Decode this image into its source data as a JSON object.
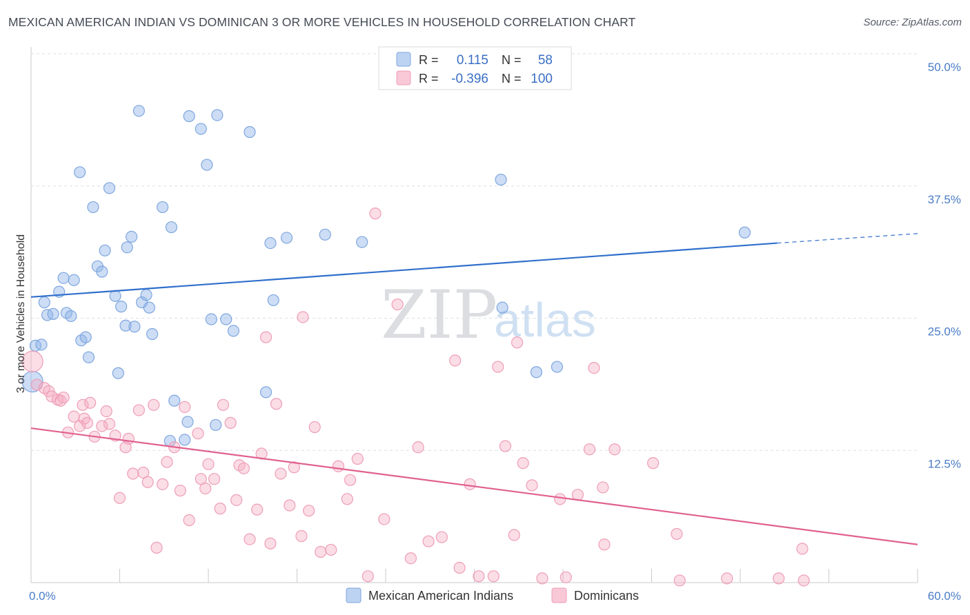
{
  "header": {
    "title": "MEXICAN AMERICAN INDIAN VS DOMINICAN 3 OR MORE VEHICLES IN HOUSEHOLD CORRELATION CHART",
    "source": "Source: ZipAtlas.com"
  },
  "watermark": {
    "zip": "ZIP",
    "atlas": "atlas"
  },
  "legend_top": {
    "rows": [
      {
        "r_label": "R =",
        "r_value": "0.115",
        "n_label": "N =",
        "n_value": "58",
        "color": "#8fb4e8"
      },
      {
        "r_label": "R =",
        "r_value": "-0.396",
        "n_label": "N =",
        "n_value": "100",
        "color": "#f4a9c0"
      }
    ]
  },
  "legend_bottom": {
    "items": [
      {
        "label": "Mexican American Indians",
        "color": "#8fb4e8"
      },
      {
        "label": "Dominicans",
        "color": "#f4a9c0"
      }
    ]
  },
  "chart_data": {
    "type": "scatter",
    "title": "MEXICAN AMERICAN INDIAN VS DOMINICAN 3 OR MORE VEHICLES IN HOUSEHOLD CORRELATION CHART",
    "xlabel": "",
    "ylabel": "3 or more Vehicles in Household",
    "xlim": [
      0,
      60
    ],
    "ylim": [
      0,
      50
    ],
    "x_tick_labels": [
      "0.0%",
      "60.0%"
    ],
    "y_ticks": [
      12.5,
      25.0,
      37.5,
      50.0
    ],
    "y_tick_labels": [
      "12.5%",
      "25.0%",
      "37.5%",
      "50.0%"
    ],
    "grid": "horizontal dashed",
    "legend_position": "top-center",
    "series": [
      {
        "name": "Mexican American Indians",
        "color": "#8fb4e8",
        "line_color": "#2f6fcc",
        "trend": {
          "x": [
            0,
            50.5
          ],
          "y": [
            27.0,
            32.1
          ],
          "dashed_extension_to": [
            60,
            33.0
          ]
        },
        "points": [
          [
            0.1,
            19.0
          ],
          [
            0.3,
            22.4
          ],
          [
            0.7,
            22.5
          ],
          [
            0.9,
            26.5
          ],
          [
            1.1,
            25.3
          ],
          [
            1.5,
            25.4
          ],
          [
            1.9,
            27.5
          ],
          [
            2.2,
            28.8
          ],
          [
            2.4,
            25.5
          ],
          [
            2.7,
            25.2
          ],
          [
            2.9,
            28.6
          ],
          [
            3.3,
            38.8
          ],
          [
            3.4,
            22.9
          ],
          [
            3.7,
            23.2
          ],
          [
            3.9,
            21.3
          ],
          [
            4.2,
            35.5
          ],
          [
            4.5,
            29.9
          ],
          [
            4.8,
            29.4
          ],
          [
            5.0,
            31.4
          ],
          [
            5.3,
            37.3
          ],
          [
            5.7,
            27.1
          ],
          [
            5.9,
            19.8
          ],
          [
            6.1,
            26.1
          ],
          [
            6.4,
            24.3
          ],
          [
            6.5,
            31.7
          ],
          [
            6.8,
            32.7
          ],
          [
            7.0,
            24.2
          ],
          [
            7.3,
            44.6
          ],
          [
            7.5,
            26.5
          ],
          [
            7.8,
            27.2
          ],
          [
            8.0,
            26.0
          ],
          [
            8.2,
            23.5
          ],
          [
            8.9,
            35.5
          ],
          [
            9.4,
            13.4
          ],
          [
            9.5,
            33.6
          ],
          [
            9.7,
            17.2
          ],
          [
            10.4,
            13.5
          ],
          [
            10.6,
            15.2
          ],
          [
            10.7,
            44.1
          ],
          [
            11.5,
            42.9
          ],
          [
            11.9,
            39.5
          ],
          [
            12.2,
            24.9
          ],
          [
            12.5,
            14.9
          ],
          [
            12.6,
            44.2
          ],
          [
            13.2,
            24.9
          ],
          [
            13.7,
            23.8
          ],
          [
            14.8,
            42.6
          ],
          [
            15.9,
            18.0
          ],
          [
            16.2,
            32.1
          ],
          [
            16.4,
            26.7
          ],
          [
            17.3,
            32.6
          ],
          [
            19.9,
            32.9
          ],
          [
            22.4,
            32.2
          ],
          [
            31.8,
            38.1
          ],
          [
            31.9,
            26.0
          ],
          [
            34.2,
            19.9
          ],
          [
            35.6,
            20.4
          ],
          [
            48.3,
            33.1
          ]
        ]
      },
      {
        "name": "Dominicans",
        "color": "#f4a9c0",
        "line_color": "#e0608f",
        "trend": {
          "x": [
            0,
            60
          ],
          "y": [
            14.6,
            3.6
          ]
        },
        "points": [
          [
            0.1,
            20.9
          ],
          [
            0.4,
            18.7
          ],
          [
            0.9,
            18.4
          ],
          [
            1.2,
            18.1
          ],
          [
            1.4,
            17.6
          ],
          [
            1.8,
            17.3
          ],
          [
            2.0,
            17.2
          ],
          [
            2.2,
            17.5
          ],
          [
            2.5,
            14.2
          ],
          [
            2.9,
            15.7
          ],
          [
            3.3,
            14.8
          ],
          [
            3.5,
            16.8
          ],
          [
            3.6,
            15.5
          ],
          [
            3.8,
            15.1
          ],
          [
            4.0,
            17.0
          ],
          [
            4.3,
            13.8
          ],
          [
            4.8,
            14.8
          ],
          [
            5.1,
            16.2
          ],
          [
            5.3,
            15.0
          ],
          [
            5.7,
            13.9
          ],
          [
            6.0,
            8.0
          ],
          [
            6.4,
            12.8
          ],
          [
            6.6,
            13.6
          ],
          [
            6.9,
            10.3
          ],
          [
            7.3,
            16.3
          ],
          [
            7.6,
            10.4
          ],
          [
            7.9,
            9.5
          ],
          [
            8.3,
            16.8
          ],
          [
            8.5,
            3.3
          ],
          [
            8.9,
            9.3
          ],
          [
            9.2,
            11.4
          ],
          [
            9.7,
            12.8
          ],
          [
            10.1,
            8.7
          ],
          [
            10.4,
            16.6
          ],
          [
            10.7,
            5.9
          ],
          [
            11.3,
            14.1
          ],
          [
            11.5,
            9.8
          ],
          [
            11.8,
            8.9
          ],
          [
            12.0,
            11.2
          ],
          [
            12.4,
            9.8
          ],
          [
            12.8,
            7.0
          ],
          [
            13.0,
            16.8
          ],
          [
            13.5,
            15.1
          ],
          [
            13.9,
            7.8
          ],
          [
            14.1,
            11.1
          ],
          [
            14.4,
            10.8
          ],
          [
            14.8,
            4.1
          ],
          [
            15.3,
            6.9
          ],
          [
            15.6,
            12.2
          ],
          [
            15.9,
            23.2
          ],
          [
            16.2,
            3.7
          ],
          [
            16.6,
            16.9
          ],
          [
            16.9,
            10.3
          ],
          [
            17.5,
            7.3
          ],
          [
            17.8,
            10.9
          ],
          [
            18.3,
            4.4
          ],
          [
            18.4,
            25.1
          ],
          [
            18.8,
            6.8
          ],
          [
            19.2,
            14.7
          ],
          [
            19.6,
            2.9
          ],
          [
            20.3,
            3.1
          ],
          [
            20.8,
            11.0
          ],
          [
            21.4,
            7.9
          ],
          [
            21.6,
            9.7
          ],
          [
            22.1,
            11.7
          ],
          [
            22.8,
            0.6
          ],
          [
            23.3,
            34.9
          ],
          [
            23.9,
            6.0
          ],
          [
            24.8,
            26.3
          ],
          [
            25.7,
            2.3
          ],
          [
            26.2,
            12.8
          ],
          [
            26.9,
            3.9
          ],
          [
            27.8,
            4.3
          ],
          [
            28.7,
            21.0
          ],
          [
            29.0,
            1.4
          ],
          [
            29.7,
            9.3
          ],
          [
            30.3,
            0.6
          ],
          [
            31.3,
            0.6
          ],
          [
            31.6,
            20.4
          ],
          [
            32.1,
            12.9
          ],
          [
            32.7,
            4.5
          ],
          [
            32.9,
            22.7
          ],
          [
            33.3,
            11.3
          ],
          [
            33.9,
            9.2
          ],
          [
            34.6,
            0.4
          ],
          [
            35.8,
            7.9
          ],
          [
            36.2,
            0.5
          ],
          [
            37.0,
            8.3
          ],
          [
            37.8,
            12.6
          ],
          [
            38.1,
            20.3
          ],
          [
            38.7,
            9.0
          ],
          [
            38.8,
            3.6
          ],
          [
            39.5,
            12.6
          ],
          [
            42.1,
            11.3
          ],
          [
            43.7,
            4.6
          ],
          [
            43.9,
            0.2
          ],
          [
            47.1,
            0.4
          ],
          [
            50.6,
            0.4
          ],
          [
            52.2,
            3.2
          ],
          [
            52.3,
            0.2
          ]
        ]
      }
    ]
  }
}
